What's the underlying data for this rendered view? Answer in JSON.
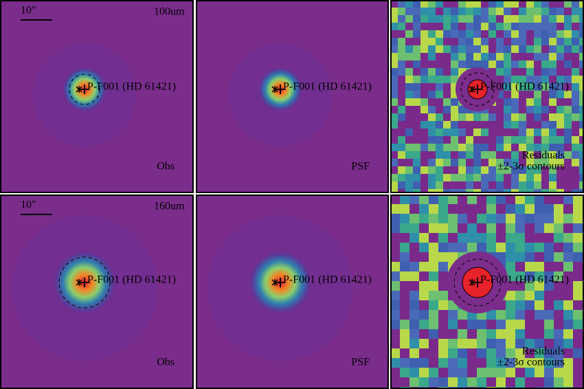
{
  "rows": [
    {
      "panels": [
        {
          "scale_label": "10\"",
          "band": "100um",
          "source": "P-F001 (HD 61421)",
          "caption": [
            "Obs"
          ]
        },
        {
          "source": "P-F001 (HD 61421)",
          "caption": [
            "PSF"
          ]
        },
        {
          "source": "P-F001 (HD 61421)",
          "caption": [
            "Residuals",
            "±2-3σ contours"
          ]
        }
      ]
    },
    {
      "panels": [
        {
          "scale_label": "10\"",
          "band": "160um",
          "source": "P-F001 (HD 61421)",
          "caption": [
            "Obs"
          ]
        },
        {
          "source": "P-F001 (HD 61421)",
          "caption": [
            "PSF"
          ]
        },
        {
          "source": "P-F001 (HD 61421)",
          "caption": [
            "Residuals",
            "±2-3σ contours"
          ]
        }
      ]
    }
  ]
}
